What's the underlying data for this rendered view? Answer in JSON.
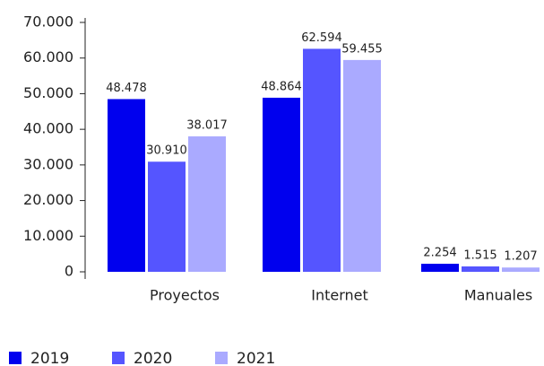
{
  "chart_data": {
    "type": "bar",
    "categories": [
      "Proyectos",
      "Internet",
      "Manuales"
    ],
    "series": [
      {
        "name": "2019",
        "color": "#0000ee",
        "values": [
          48478,
          48864,
          2254
        ],
        "value_labels": [
          "48.478",
          "48.864",
          "2.254"
        ]
      },
      {
        "name": "2020",
        "color": "#5555ff",
        "values": [
          30910,
          62594,
          1515
        ],
        "value_labels": [
          "30.910",
          "62.594",
          "1.515"
        ]
      },
      {
        "name": "2021",
        "color": "#aaaaff",
        "values": [
          38017,
          59455,
          1207
        ],
        "value_labels": [
          "38.017",
          "59.455",
          "1.207"
        ]
      }
    ],
    "ylim": [
      0,
      70000
    ],
    "yticks": [
      0,
      {
        "value": 10000,
        "label": "10.000"
      },
      {
        "value": 20000,
        "label": "20.000"
      },
      {
        "value": 30000,
        "label": "30.000"
      },
      {
        "value": 40000,
        "label": "40.000"
      },
      {
        "value": 50000,
        "label": "50.000"
      },
      {
        "value": 60000,
        "label": "60.000"
      },
      {
        "value": 70000,
        "label": "70.000"
      }
    ],
    "legend": "bottom-left"
  }
}
